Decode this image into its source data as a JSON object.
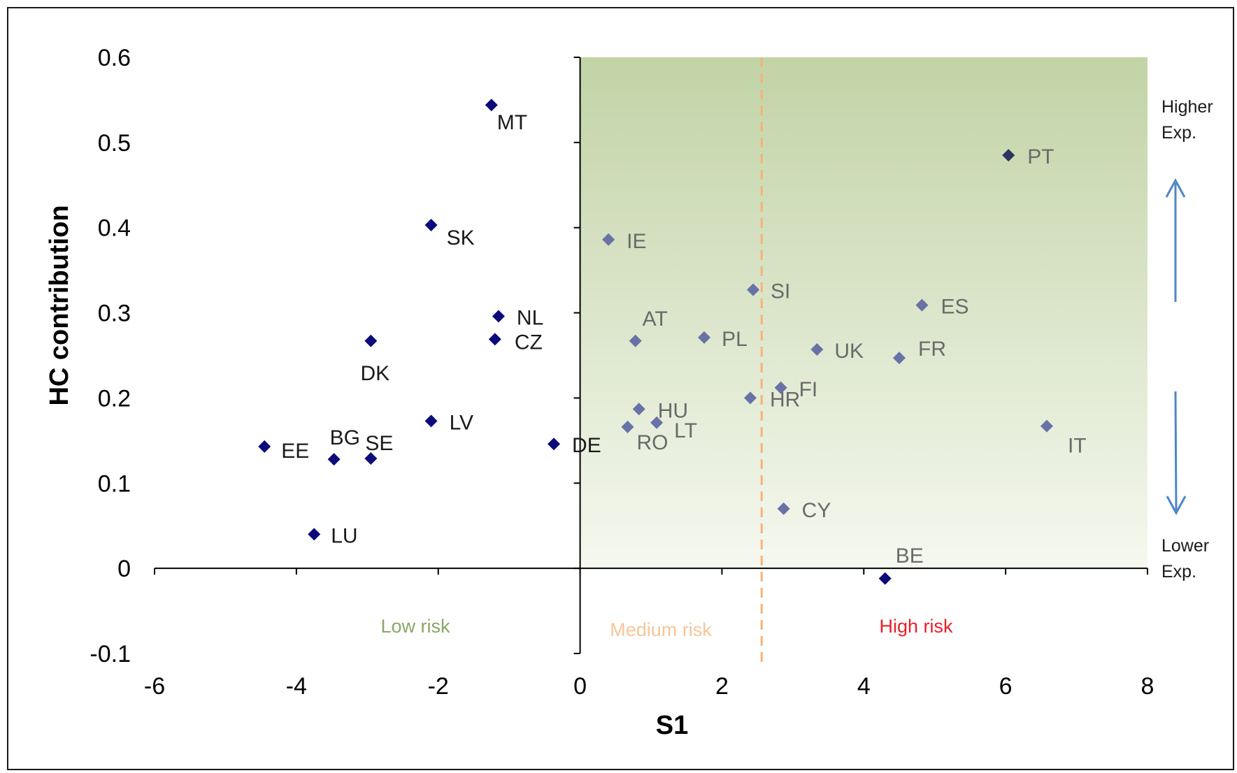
{
  "chart_data": {
    "type": "scatter",
    "title": "",
    "xlabel": "S1",
    "ylabel": "HC contribution",
    "xlim": [
      -6,
      8
    ],
    "ylim": [
      -0.1,
      0.6
    ],
    "x_ticks": [
      "-6",
      "-4",
      "-2",
      "0",
      "2",
      "4",
      "6",
      "8"
    ],
    "y_ticks": [
      "-0.1",
      "0",
      "0.1",
      "0.2",
      "0.3",
      "0.4",
      "0.5",
      "0.6"
    ],
    "threshold_x": 2.56,
    "points": [
      {
        "label": "MT",
        "x": -1.25,
        "y": 0.544
      },
      {
        "label": "SK",
        "x": -2.1,
        "y": 0.403
      },
      {
        "label": "NL",
        "x": -1.15,
        "y": 0.296
      },
      {
        "label": "CZ",
        "x": -1.2,
        "y": 0.269
      },
      {
        "label": "DK",
        "x": -2.95,
        "y": 0.267
      },
      {
        "label": "LV",
        "x": -2.1,
        "y": 0.173
      },
      {
        "label": "EE",
        "x": -4.45,
        "y": 0.143
      },
      {
        "label": "BG",
        "x": -3.47,
        "y": 0.128
      },
      {
        "label": "SE",
        "x": -2.95,
        "y": 0.129
      },
      {
        "label": "LU",
        "x": -3.75,
        "y": 0.04
      },
      {
        "label": "DE",
        "x": -0.37,
        "y": 0.146
      },
      {
        "label": "IE",
        "x": 0.4,
        "y": 0.386
      },
      {
        "label": "AT",
        "x": 0.78,
        "y": 0.267
      },
      {
        "label": "PL",
        "x": 1.75,
        "y": 0.271
      },
      {
        "label": "HU",
        "x": 0.83,
        "y": 0.187
      },
      {
        "label": "LT",
        "x": 1.08,
        "y": 0.171
      },
      {
        "label": "RO",
        "x": 0.67,
        "y": 0.166
      },
      {
        "label": "SI",
        "x": 2.44,
        "y": 0.327
      },
      {
        "label": "HR",
        "x": 2.4,
        "y": 0.2
      },
      {
        "label": "FI",
        "x": 2.83,
        "y": 0.212
      },
      {
        "label": "UK",
        "x": 3.34,
        "y": 0.257
      },
      {
        "label": "ES",
        "x": 4.82,
        "y": 0.309
      },
      {
        "label": "FR",
        "x": 4.5,
        "y": 0.247
      },
      {
        "label": "PT",
        "x": 6.04,
        "y": 0.485
      },
      {
        "label": "IT",
        "x": 6.58,
        "y": 0.167
      },
      {
        "label": "CY",
        "x": 2.87,
        "y": 0.07
      },
      {
        "label": "BE",
        "x": 4.3,
        "y": -0.012
      }
    ],
    "zones": [
      "Low risk",
      "Medium risk",
      "High risk"
    ],
    "exposure_top": [
      "Higher",
      "Exp."
    ],
    "exposure_bottom": [
      "Lower",
      "Exp."
    ]
  },
  "colors": {
    "marker_outside": "#0b0b7a",
    "marker_inside": "#6872a6",
    "marker_pt": "#2c3560",
    "label_outside": "#1a1a1a",
    "label_inside": "#6a6a6a",
    "shade_top": "#c2d3a6",
    "shade_bottom": "#f5f8ef",
    "threshold_line": "#f6b27a",
    "zone_low": "#8aa66a",
    "zone_medium": "#f6c59a",
    "zone_high": "#e8202a",
    "arrow": "#4f86c6"
  }
}
